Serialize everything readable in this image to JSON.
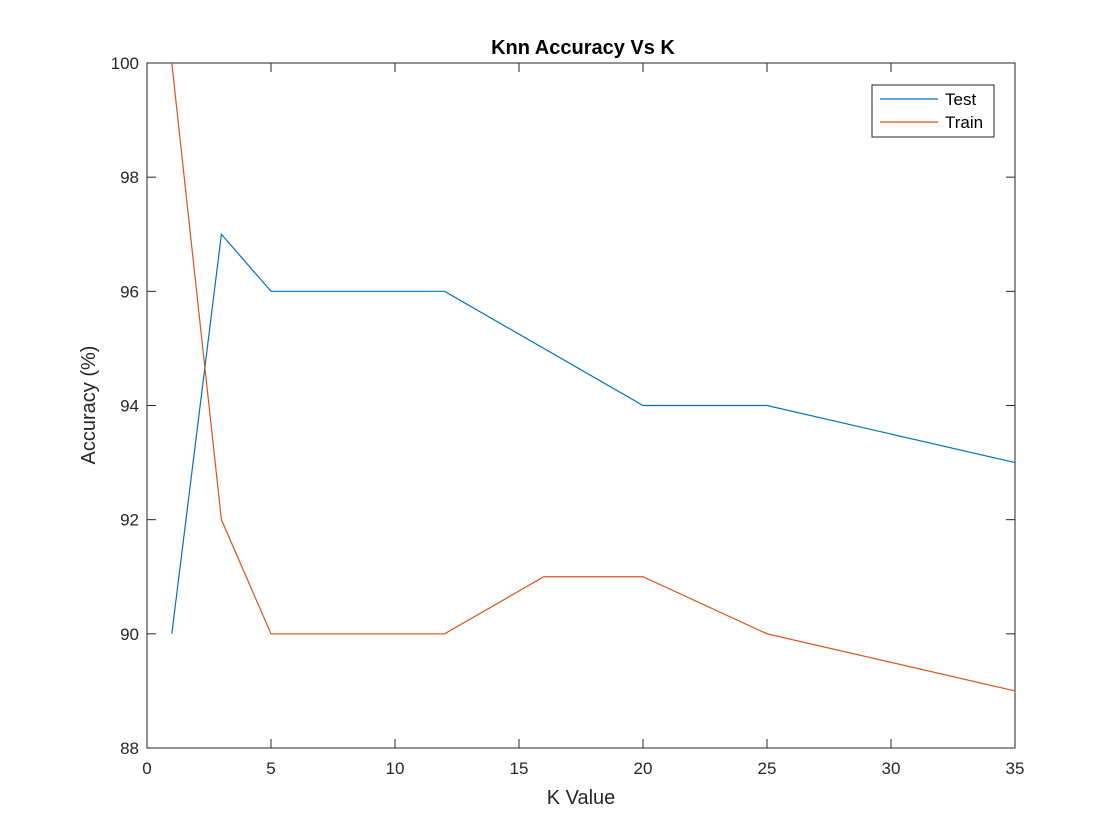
{
  "chart_data": {
    "type": "line",
    "title": "Knn Accuracy Vs K",
    "xlabel": "K Value",
    "ylabel": "Accuracy (%)",
    "xlim": [
      0,
      35
    ],
    "ylim": [
      88,
      100
    ],
    "x_ticks": [
      0,
      5,
      10,
      15,
      20,
      25,
      30,
      35
    ],
    "y_ticks": [
      88,
      90,
      92,
      94,
      96,
      98,
      100
    ],
    "grid": false,
    "legend_position": "top-right",
    "series": [
      {
        "name": "Test",
        "color": "#0072BD",
        "x": [
          1,
          3,
          5,
          12,
          20,
          25,
          35
        ],
        "y": [
          90,
          97,
          96,
          96,
          94,
          94,
          93
        ]
      },
      {
        "name": "Train",
        "color": "#D95319",
        "x": [
          1,
          3,
          5,
          12,
          16,
          20,
          25,
          35
        ],
        "y": [
          100,
          92,
          90,
          90,
          91,
          91,
          90,
          89
        ]
      }
    ]
  }
}
